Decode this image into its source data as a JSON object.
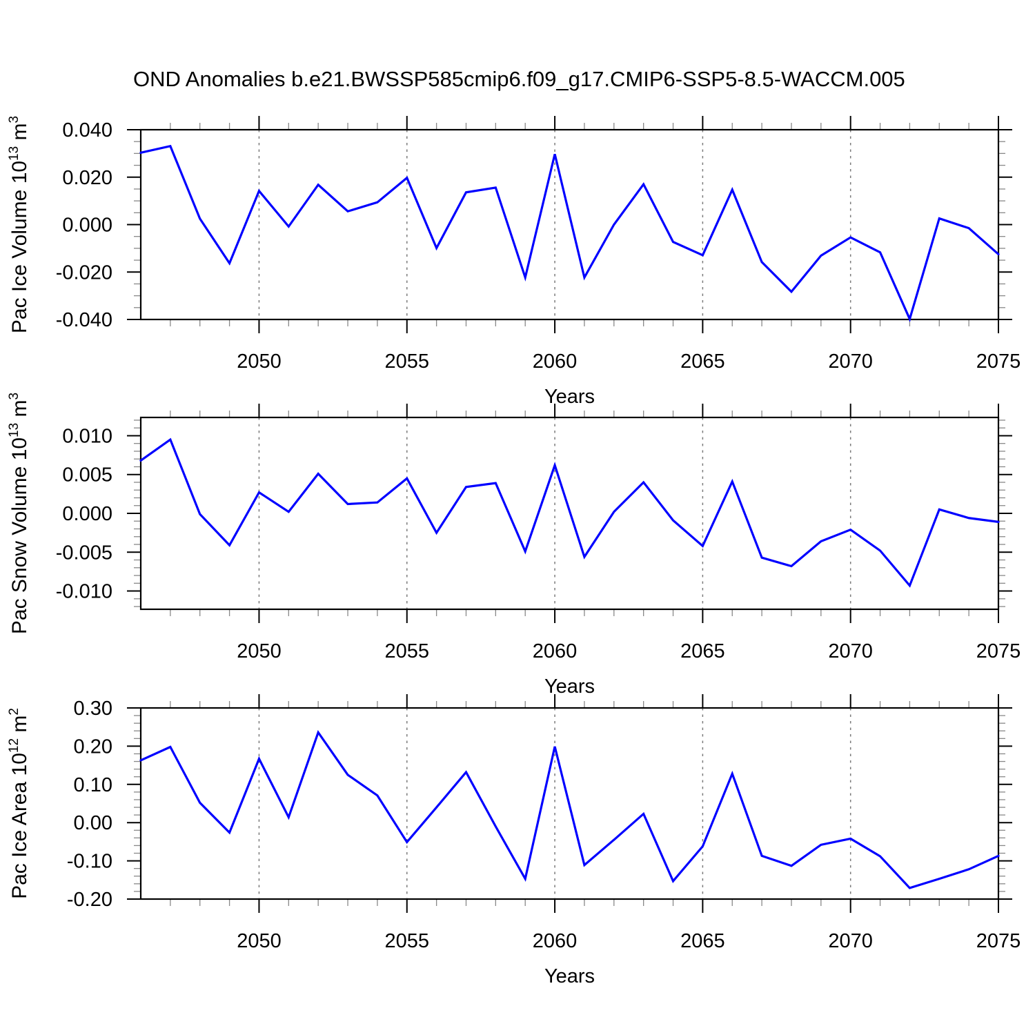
{
  "title": "OND Anomalies b.e21.BWSSP585cmip6.f09_g17.CMIP6-SSP5-8.5-WACCM.005",
  "colors": {
    "series_line": "#0000ff",
    "axis": "#000000",
    "minor_tick": "#888888",
    "gridline": "#7a7a7a",
    "background": "#ffffff"
  },
  "chart_data": [
    {
      "id": "pac-ice-volume",
      "type": "line",
      "xlabel": "Years",
      "ylabel_parts": [
        {
          "text": "Pac Ice Volume 10"
        },
        {
          "text": "13",
          "sup": true
        },
        {
          "text": " m"
        },
        {
          "text": "3",
          "sup": true
        }
      ],
      "xlim": [
        2046,
        2075
      ],
      "ylim": [
        -0.04,
        0.04
      ],
      "xticks": [
        2050,
        2055,
        2060,
        2065,
        2070,
        2075
      ],
      "xtick_labels": [
        "2050",
        "2055",
        "2060",
        "2065",
        "2070",
        "2075"
      ],
      "xminor_step": 1,
      "yticks": [
        0.04,
        0.02,
        0.0,
        -0.02,
        -0.04
      ],
      "ytick_labels": [
        "0.040",
        "0.020",
        "0.000",
        "-0.020",
        "-0.040"
      ],
      "yminor_step": 0.005,
      "gridlines_x": [
        2050,
        2055,
        2060,
        2065,
        2070
      ],
      "grid": true,
      "legend": "none",
      "x": [
        2046,
        2047,
        2048,
        2049,
        2050,
        2051,
        2052,
        2053,
        2054,
        2055,
        2056,
        2057,
        2058,
        2059,
        2060,
        2061,
        2062,
        2063,
        2064,
        2065,
        2066,
        2067,
        2068,
        2069,
        2070,
        2071,
        2072,
        2073,
        2074,
        2075
      ],
      "values": [
        0.0303,
        0.0331,
        0.0025,
        -0.0163,
        0.0142,
        -0.0008,
        0.0168,
        0.0056,
        0.0094,
        0.0197,
        -0.0099,
        0.0136,
        0.0156,
        -0.0223,
        0.0297,
        -0.0223,
        0.0,
        0.017,
        -0.0073,
        -0.0129,
        0.0147,
        -0.0158,
        -0.0283,
        -0.0131,
        -0.0054,
        -0.0117,
        -0.0398,
        0.0026,
        -0.0015,
        -0.0125
      ]
    },
    {
      "id": "pac-snow-volume",
      "type": "line",
      "xlabel": "Years",
      "ylabel_parts": [
        {
          "text": "Pac Snow Volume 10"
        },
        {
          "text": "13",
          "sup": true
        },
        {
          "text": " m"
        },
        {
          "text": "3",
          "sup": true
        }
      ],
      "xlim": [
        2046,
        2075
      ],
      "ylim": [
        -0.01235,
        0.01235
      ],
      "xticks": [
        2050,
        2055,
        2060,
        2065,
        2070,
        2075
      ],
      "xtick_labels": [
        "2050",
        "2055",
        "2060",
        "2065",
        "2070",
        "2075"
      ],
      "xminor_step": 1,
      "yticks": [
        0.01,
        0.005,
        0.0,
        -0.005,
        -0.01
      ],
      "ytick_labels": [
        "0.010",
        "0.005",
        "0.000",
        "-0.005",
        "-0.010"
      ],
      "yminor_step": 0.001,
      "gridlines_x": [
        2050,
        2055,
        2060,
        2065,
        2070
      ],
      "grid": true,
      "legend": "none",
      "x": [
        2046,
        2047,
        2048,
        2049,
        2050,
        2051,
        2052,
        2053,
        2054,
        2055,
        2056,
        2057,
        2058,
        2059,
        2060,
        2061,
        2062,
        2063,
        2064,
        2065,
        2066,
        2067,
        2068,
        2069,
        2070,
        2071,
        2072,
        2073,
        2074,
        2075
      ],
      "values": [
        0.0068,
        0.0095,
        -0.0001,
        -0.0041,
        0.0027,
        0.0002,
        0.0051,
        0.0012,
        0.0014,
        0.0045,
        -0.0025,
        0.0034,
        0.0039,
        -0.0049,
        0.0062,
        -0.0056,
        0.0002,
        0.004,
        -0.0009,
        -0.0042,
        0.0041,
        -0.0057,
        -0.0068,
        -0.0036,
        -0.0021,
        -0.0048,
        -0.0093,
        0.0005,
        -0.0006,
        -0.0011
      ]
    },
    {
      "id": "pac-ice-area",
      "type": "line",
      "xlabel": "Years",
      "ylabel_parts": [
        {
          "text": "Pac Ice Area 10"
        },
        {
          "text": "12",
          "sup": true
        },
        {
          "text": " m"
        },
        {
          "text": "2",
          "sup": true
        }
      ],
      "xlim": [
        2046,
        2075
      ],
      "ylim": [
        -0.2,
        0.3
      ],
      "xticks": [
        2050,
        2055,
        2060,
        2065,
        2070,
        2075
      ],
      "xtick_labels": [
        "2050",
        "2055",
        "2060",
        "2065",
        "2070",
        "2075"
      ],
      "xminor_step": 1,
      "yticks": [
        0.3,
        0.2,
        0.1,
        0.0,
        -0.1,
        -0.2
      ],
      "ytick_labels": [
        "0.30",
        "0.20",
        "0.10",
        "0.00",
        "-0.10",
        "-0.20"
      ],
      "yminor_step": 0.02,
      "gridlines_x": [
        2050,
        2055,
        2060,
        2065,
        2070
      ],
      "grid": true,
      "legend": "none",
      "x": [
        2046,
        2047,
        2048,
        2049,
        2050,
        2051,
        2052,
        2053,
        2054,
        2055,
        2056,
        2057,
        2058,
        2059,
        2060,
        2061,
        2062,
        2063,
        2064,
        2065,
        2066,
        2067,
        2068,
        2069,
        2070,
        2071,
        2072,
        2073,
        2074,
        2075
      ],
      "values": [
        0.163,
        0.198,
        0.052,
        -0.026,
        0.167,
        0.014,
        0.236,
        0.125,
        0.071,
        -0.051,
        0.04,
        0.132,
        -0.01,
        -0.147,
        0.199,
        -0.111,
        -0.045,
        0.023,
        -0.153,
        -0.062,
        0.128,
        -0.087,
        -0.113,
        -0.058,
        -0.042,
        -0.088,
        -0.171,
        -0.147,
        -0.122,
        -0.087
      ]
    }
  ]
}
